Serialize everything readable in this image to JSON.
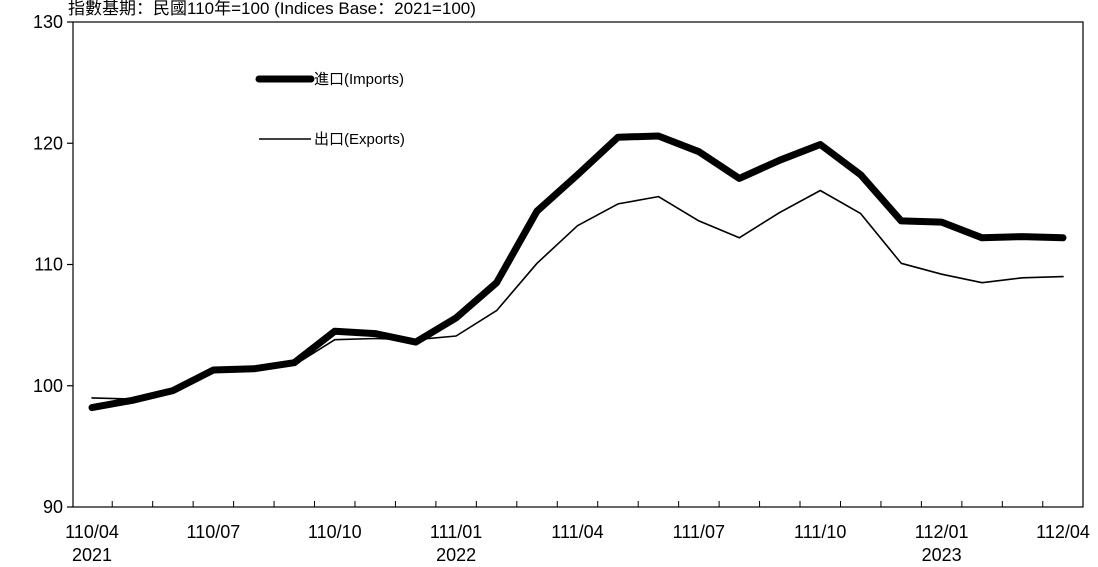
{
  "chart_data": {
    "type": "line",
    "subtitle": "指數基期：民國110年=100 (Indices Base：2021=100)",
    "ylim": [
      90,
      130
    ],
    "yticks": [
      90,
      100,
      110,
      120,
      130
    ],
    "x": [
      "110/04",
      "110/05",
      "110/06",
      "110/07",
      "110/08",
      "110/09",
      "110/10",
      "110/11",
      "110/12",
      "111/01",
      "111/02",
      "111/03",
      "111/04",
      "111/05",
      "111/06",
      "111/07",
      "111/08",
      "111/09",
      "111/10",
      "111/11",
      "111/12",
      "112/01",
      "112/02",
      "112/03",
      "112/04"
    ],
    "xtick_labels": [
      {
        "index": 0,
        "label": "110/04",
        "year": "2021"
      },
      {
        "index": 3,
        "label": "110/07",
        "year": ""
      },
      {
        "index": 6,
        "label": "110/10",
        "year": ""
      },
      {
        "index": 9,
        "label": "111/01",
        "year": "2022"
      },
      {
        "index": 12,
        "label": "111/04",
        "year": ""
      },
      {
        "index": 15,
        "label": "111/07",
        "year": ""
      },
      {
        "index": 18,
        "label": "111/10",
        "year": ""
      },
      {
        "index": 21,
        "label": "112/01",
        "year": "2023"
      },
      {
        "index": 24,
        "label": "112/04",
        "year": ""
      }
    ],
    "series": [
      {
        "name": "進口(Imports)",
        "style": "thick",
        "color": "#000000",
        "values": [
          98.2,
          98.8,
          99.6,
          101.3,
          101.4,
          101.9,
          104.5,
          104.3,
          103.6,
          105.6,
          108.5,
          114.4,
          117.4,
          120.5,
          120.6,
          119.3,
          117.1,
          118.6,
          119.9,
          117.4,
          113.6,
          113.5,
          112.2,
          112.3,
          112.2
        ]
      },
      {
        "name": "出口(Exports)",
        "style": "thin",
        "color": "#000000",
        "values": [
          99.0,
          98.9,
          99.7,
          101.2,
          101.3,
          101.7,
          103.8,
          103.9,
          103.8,
          104.1,
          106.2,
          110.1,
          113.2,
          115.0,
          115.6,
          113.6,
          112.2,
          114.3,
          116.1,
          114.2,
          110.1,
          109.2,
          108.5,
          108.9,
          109.0
        ]
      }
    ],
    "legend": "top-left",
    "grid": false
  }
}
